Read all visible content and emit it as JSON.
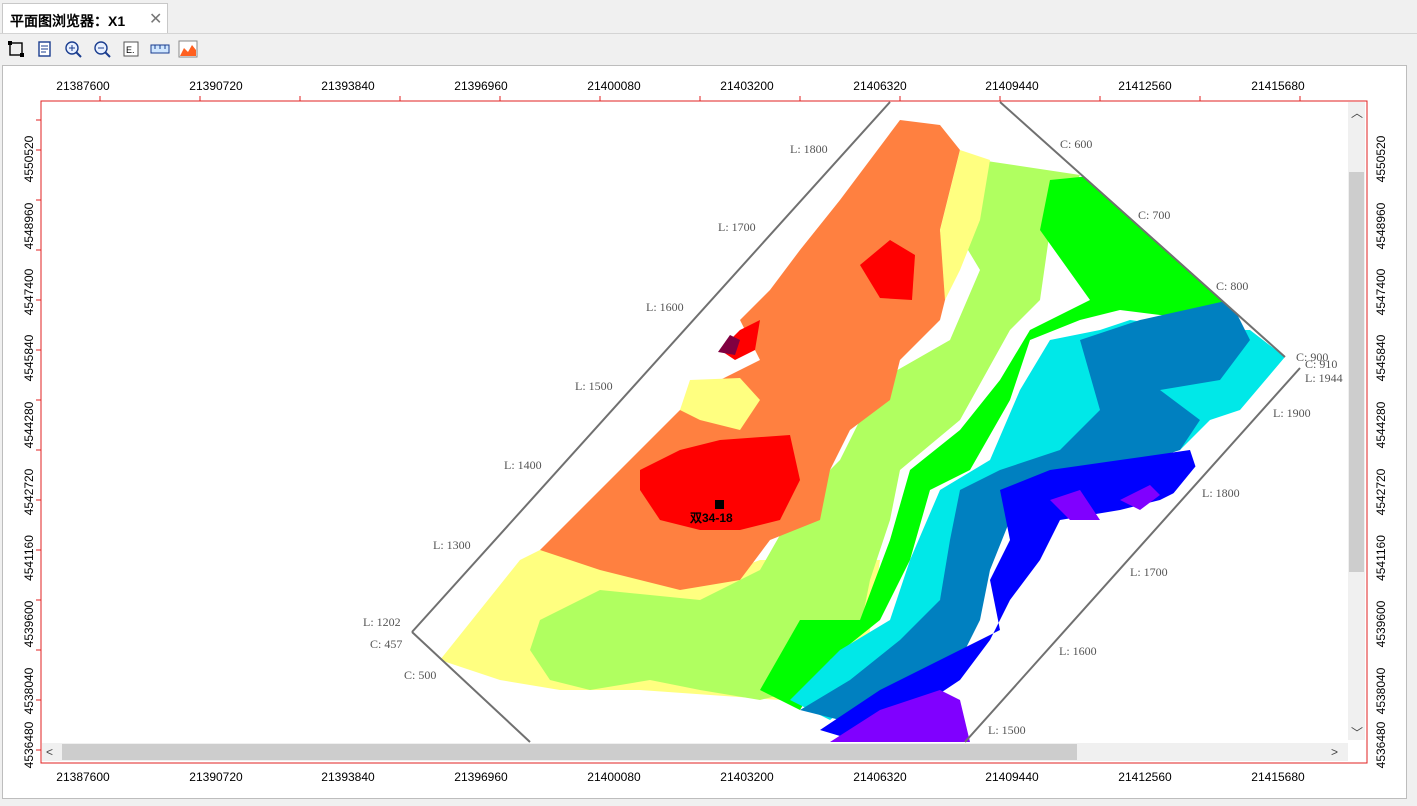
{
  "tab": {
    "title": "平面图浏览器：X1",
    "close": "✕"
  },
  "toolbar": {
    "icons": [
      "select-rect-icon",
      "page-setup-icon",
      "zoom-in-icon",
      "zoom-out-icon",
      "grid-settings-icon",
      "ruler-icon",
      "chart-icon"
    ]
  },
  "x_ticks": [
    "21387600",
    "21390720",
    "21393840",
    "21396960",
    "21400080",
    "21403200",
    "21406320",
    "21409440",
    "21412560",
    "21415680"
  ],
  "y_ticks": [
    "4550520",
    "4548960",
    "4547400",
    "4545840",
    "4544280",
    "4542720",
    "4541160",
    "4539600",
    "4538040",
    "4536480"
  ],
  "y_ticks_right": [
    "4550520",
    "4548960",
    "4547400",
    "4545840",
    "4544280",
    "4542720",
    "4541160",
    "4539600",
    "4538040",
    "4536480"
  ],
  "well": {
    "label": "双34-18"
  },
  "survey_labels": {
    "l1800_top": "L: 1800",
    "l1700_top": "L: 1700",
    "l1600_top": "L: 1600",
    "l1500_top": "L: 1500",
    "l1400_top": "L: 1400",
    "l1300_top": "L: 1300",
    "l1202": "L: 1202",
    "c457": "C: 457",
    "c500": "C: 500",
    "c600": "C: 600",
    "c700": "C: 700",
    "c800": "C: 800",
    "c900": "C: 900",
    "c910": "C: 910",
    "l1944": "L: 1944",
    "l1900_r": "L: 1900",
    "l1800_r": "L: 1800",
    "l1700_r": "L: 1700",
    "l1600_r": "L: 1600",
    "l1500_r": "L: 1500",
    "c_cut": "C: 600"
  },
  "colors": {
    "frame": "#e02020",
    "red": "#ff0000",
    "orange": "#ff8040",
    "yellow": "#ffff80",
    "lightgreen": "#b0ff60",
    "green": "#00ff00",
    "cyan": "#00e8e8",
    "teal": "#0080c0",
    "blue": "#0000ff",
    "purple": "#8000ff",
    "darkred": "#800040"
  }
}
